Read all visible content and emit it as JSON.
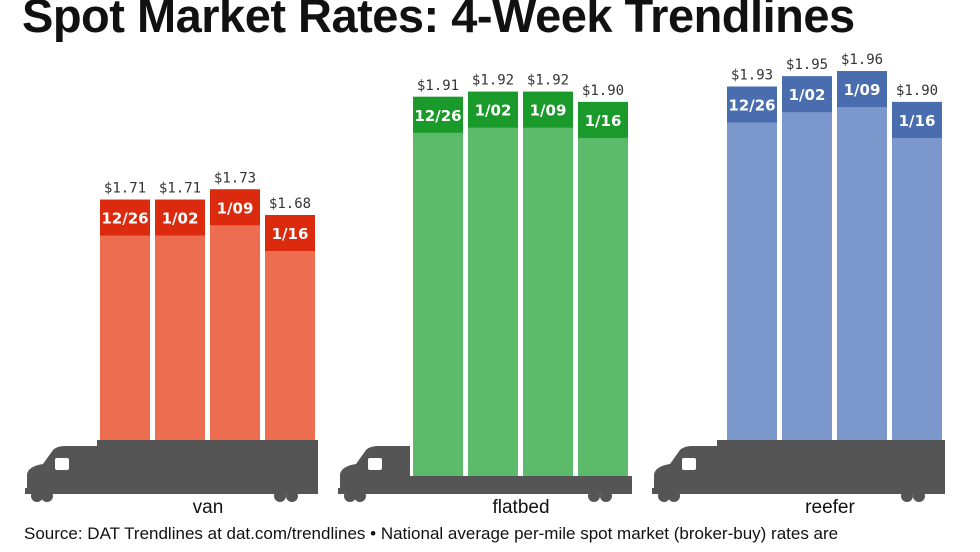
{
  "chart_data": {
    "type": "bar",
    "title": "Spot Market Rates: 4-Week Trendlines",
    "categories": [
      "12/26",
      "1/02",
      "1/09",
      "1/16"
    ],
    "series": [
      {
        "name": "van",
        "values": [
          1.71,
          1.71,
          1.73,
          1.68
        ],
        "labels": [
          "$1.71",
          "$1.71",
          "$1.73",
          "$1.68"
        ],
        "color": "#ec6d50",
        "band_color": "#dc2a0e"
      },
      {
        "name": "flatbed",
        "values": [
          1.91,
          1.92,
          1.92,
          1.9
        ],
        "labels": [
          "$1.91",
          "$1.92",
          "$1.92",
          "$1.90"
        ],
        "color": "#5bbb6b",
        "band_color": "#1a9a2a"
      },
      {
        "name": "reefer",
        "values": [
          1.93,
          1.95,
          1.96,
          1.9
        ],
        "labels": [
          "$1.93",
          "$1.95",
          "$1.96",
          "$1.90"
        ],
        "color": "#7b97cb",
        "band_color": "#4a6db0"
      }
    ],
    "grid": false,
    "legend": "none"
  },
  "source": "Source: DAT Trendlines at dat.com/trendlines • National average per-mile spot market (broker-buy) rates are",
  "truck_color": "#555555"
}
